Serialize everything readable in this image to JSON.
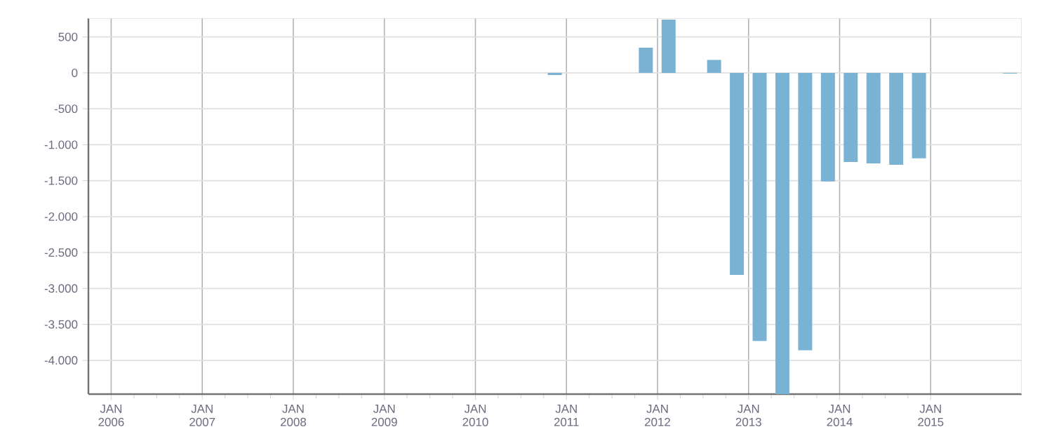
{
  "chart_data": {
    "type": "bar",
    "color": "#7ab2d4",
    "x": [
      "2010-11-15",
      "2011-11-15",
      "2012-02-15",
      "2012-08-15",
      "2012-11-15",
      "2013-02-15",
      "2013-05-15",
      "2013-08-15",
      "2013-11-15",
      "2014-02-15",
      "2014-05-15",
      "2014-08-15",
      "2014-11-15",
      "2015-11-15"
    ],
    "values": [
      -30,
      350,
      740,
      180,
      -2810,
      -3730,
      -4470,
      -3860,
      -1510,
      -1240,
      -1260,
      -1280,
      -1190,
      -10
    ],
    "xlim": [
      "2005-10",
      "2016-01"
    ],
    "xticks": [
      {
        "value": "2006-01",
        "label": "JAN 2006"
      },
      {
        "value": "2007-01",
        "label": "JAN 2007"
      },
      {
        "value": "2008-01",
        "label": "JAN 2008"
      },
      {
        "value": "2009-01",
        "label": "JAN 2009"
      },
      {
        "value": "2010-01",
        "label": "JAN 2010"
      },
      {
        "value": "2011-01",
        "label": "JAN 2011"
      },
      {
        "value": "2012-01",
        "label": "JAN 2012"
      },
      {
        "value": "2013-01",
        "label": "JAN 2013"
      },
      {
        "value": "2014-01",
        "label": "JAN 2014"
      },
      {
        "value": "2015-01",
        "label": "JAN 2015"
      }
    ],
    "ylim": [
      -4470,
      760
    ],
    "yticks": [
      {
        "value": 500,
        "label": "500"
      },
      {
        "value": 0,
        "label": "0"
      },
      {
        "value": -500,
        "label": "-500"
      },
      {
        "value": -1000,
        "label": "-1.000"
      },
      {
        "value": -1500,
        "label": "-1.500"
      },
      {
        "value": -2000,
        "label": "-2.000"
      },
      {
        "value": -2500,
        "label": "-2.500"
      },
      {
        "value": -3000,
        "label": "-3.000"
      },
      {
        "value": -3500,
        "label": "-3.500"
      },
      {
        "value": -4000,
        "label": "-4.000"
      }
    ],
    "grid": true
  }
}
